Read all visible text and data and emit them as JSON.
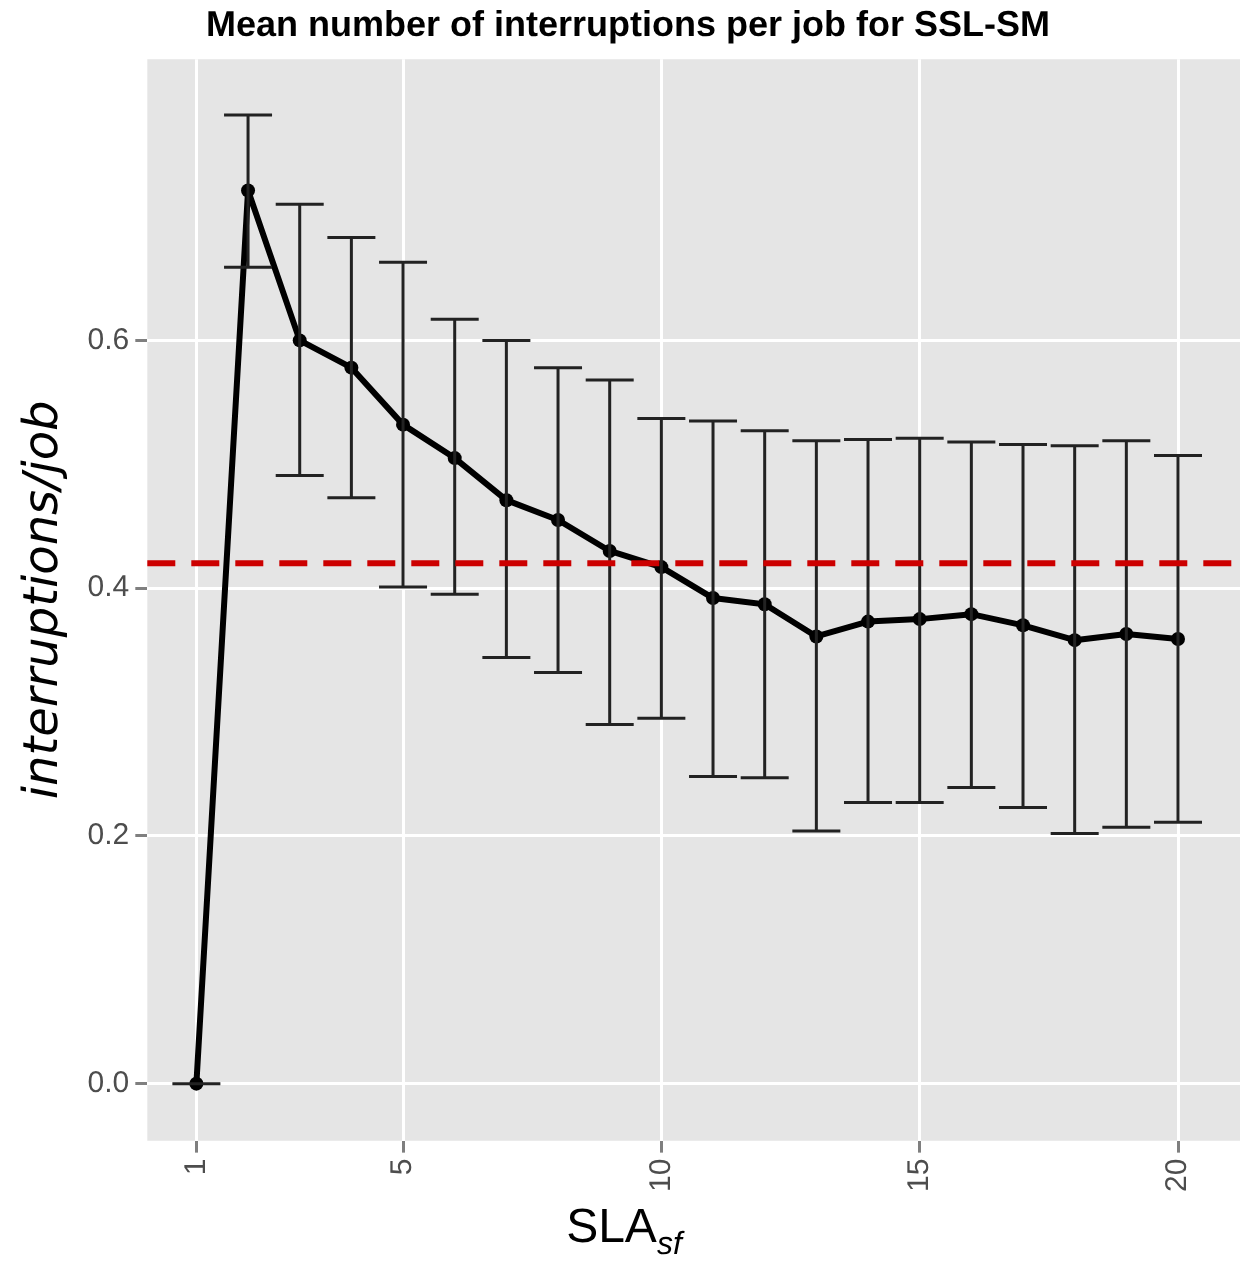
{
  "chart_data": {
    "type": "line",
    "title": "Mean number of interruptions per job for SSL-SM",
    "xlabel": "SLA$_{sf}$",
    "ylabel": "interruptions/job",
    "x": [
      1,
      2,
      3,
      4,
      5,
      6,
      7,
      8,
      9,
      10,
      11,
      12,
      13,
      14,
      15,
      16,
      17,
      18,
      19,
      20
    ],
    "series": [
      {
        "color": "#000000",
        "values": [
          0,
          0.721,
          0.6,
          0.578,
          0.532,
          0.505,
          0.471,
          0.455,
          0.43,
          0.417,
          0.392,
          0.387,
          0.361,
          0.373,
          0.375,
          0.379,
          0.37,
          0.358,
          0.363,
          0.359
        ],
        "errors": [
          [
            0,
            0
          ],
          [
            0.659,
            0.782
          ],
          [
            0.491,
            0.71
          ],
          [
            0.473,
            0.683
          ],
          [
            0.401,
            0.663
          ],
          [
            0.395,
            0.617
          ],
          [
            0.344,
            0.6
          ],
          [
            0.332,
            0.578
          ],
          [
            0.29,
            0.568
          ],
          [
            0.295,
            0.537
          ],
          [
            0.248,
            0.535
          ],
          [
            0.247,
            0.527
          ],
          [
            0.204,
            0.519
          ],
          [
            0.227,
            0.52
          ],
          [
            0.227,
            0.521
          ],
          [
            0.239,
            0.518
          ],
          [
            0.223,
            0.516
          ],
          [
            0.202,
            0.515
          ],
          [
            0.207,
            0.519
          ],
          [
            0.211,
            0.507
          ]
        ]
      }
    ],
    "xlim": [
      0.05,
      21.2
    ],
    "xticks": [
      1,
      5,
      10,
      15,
      20
    ],
    "ylim": [
      -0.046,
      0.827
    ],
    "yticks": [
      {
        "value": 0,
        "label": "0.0"
      },
      {
        "value": 0.2,
        "label": "0.2"
      },
      {
        "value": 0.4,
        "label": "0.4"
      },
      {
        "value": 0.6,
        "label": "0.6"
      }
    ],
    "ref_lines": [
      {
        "axis": "y",
        "value": 0.42,
        "color": "#cc0000",
        "line_style": "dashed"
      }
    ],
    "grid": true,
    "legend": false,
    "marker": "circle",
    "line_style": "solid"
  }
}
